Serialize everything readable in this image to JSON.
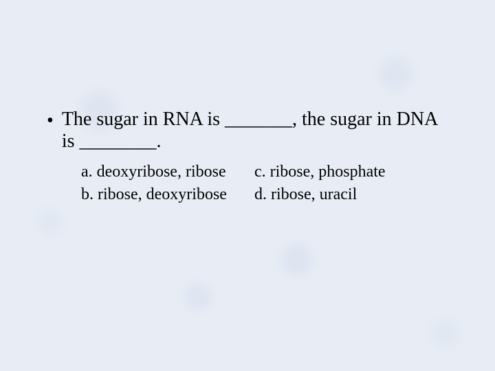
{
  "slide": {
    "background_color": "#e8edf5",
    "text_color": "#000000",
    "font_family": "Times New Roman",
    "question": {
      "bullet": "•",
      "text": "The sugar in  RNA is _______, the sugar in DNA is ________.",
      "fontsize": 28
    },
    "answers": {
      "fontsize": 24,
      "left": [
        "a. deoxyribose, ribose",
        "b. ribose, deoxyribose"
      ],
      "right": [
        "c. ribose, phosphate",
        "d. ribose, uracil"
      ]
    }
  }
}
